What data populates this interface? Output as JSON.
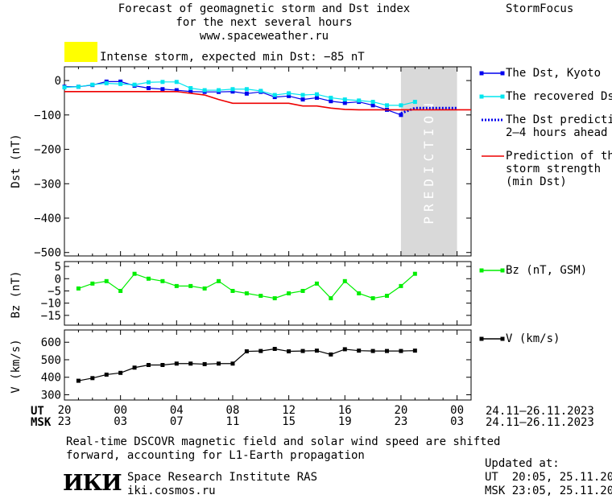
{
  "header": {
    "title_line1": "Forecast of geomagnetic storm and Dst index",
    "title_line2": "for the next several hours",
    "website": "www.spaceweather.ru",
    "brand": "StormFocus",
    "storm_indicator_color": "#ffff00",
    "storm_text": "Intense storm, expected min Dst: −85 nT"
  },
  "legend": {
    "dst_kyoto": "The Dst, Kyoto",
    "recovered_dst": "The recovered Dst",
    "dst_prediction_line1": "The Dst prediction",
    "dst_prediction_line2": "2–4 hours ahead",
    "storm_strength_line1": "Prediction of the",
    "storm_strength_line2": "storm strength",
    "storm_strength_line3": "(min Dst)",
    "bz": "Bz (nT, GSM)",
    "v": "V (km/s)"
  },
  "time_axis": {
    "ut_label": "UT",
    "msk_label": "MSK",
    "ut_ticks": [
      "20",
      "00",
      "04",
      "08",
      "12",
      "16",
      "20",
      "00"
    ],
    "msk_ticks": [
      "23",
      "03",
      "07",
      "11",
      "15",
      "19",
      "23",
      "03"
    ],
    "ut_range": "24.11–26.11.2023",
    "msk_range": "24.11–26.11.2023"
  },
  "footer": {
    "note_line1": "Real-time DSCOVR magnetic field and solar wind speed are shifted",
    "note_line2": "forward, accounting for L1-Earth propagation",
    "logo_text": "ИКИ",
    "institute": "Space Research Institute RAS",
    "institute_site": "iki.cosmos.ru",
    "updated_label": "Updated at:",
    "updated_ut": "UT  20:05, 25.11.2023",
    "updated_msk": "MSK 23:05, 25.11.2023"
  },
  "chart_data": [
    {
      "type": "line",
      "ylabel": "Dst (nT)",
      "ylim": [
        -510,
        40
      ],
      "yticks": [
        0,
        -100,
        -200,
        -300,
        -400,
        -500
      ],
      "ytick_labels": [
        "0",
        "−100",
        "−200",
        "−300",
        "−400",
        "−500"
      ],
      "xlim_hours_from_start": [
        0,
        29
      ],
      "prediction_region": {
        "start_hour": 24,
        "end_hour": 28,
        "label": "PREDICTION",
        "color": "#d9d9d9"
      },
      "series": [
        {
          "name": "The Dst, Kyoto",
          "color": "#0000ee",
          "x": [
            0,
            1,
            2,
            3,
            4,
            5,
            6,
            7,
            8,
            9,
            10,
            11,
            12,
            13,
            14,
            15,
            16,
            17,
            18,
            19,
            20,
            21,
            22,
            23,
            24
          ],
          "y": [
            -18,
            -18,
            -13,
            -3,
            -3,
            -15,
            -22,
            -25,
            -28,
            -32,
            -33,
            -33,
            -32,
            -38,
            -33,
            -48,
            -45,
            -55,
            -50,
            -60,
            -65,
            -62,
            -72,
            -85,
            -100
          ]
        },
        {
          "name": "The recovered Dst",
          "color": "#00e5ee",
          "x": [
            0,
            1,
            2,
            3,
            4,
            5,
            6,
            7,
            8,
            9,
            10,
            11,
            12,
            13,
            14,
            15,
            16,
            17,
            18,
            19,
            20,
            21,
            22,
            23,
            24,
            25
          ],
          "y": [
            -20,
            -18,
            -12,
            -8,
            -10,
            -12,
            -5,
            -4,
            -4,
            -22,
            -28,
            -28,
            -25,
            -25,
            -30,
            -42,
            -37,
            -42,
            -40,
            -50,
            -55,
            -58,
            -62,
            -72,
            -72,
            -62
          ]
        },
        {
          "name": "The Dst prediction 2–4 hours ahead",
          "color": "#0000ee",
          "style": "dotted",
          "x": [
            24,
            25,
            26,
            27,
            28
          ],
          "y": [
            -95,
            -80,
            -80,
            -80,
            -80
          ]
        },
        {
          "name": "Prediction of the storm strength (min Dst)",
          "color": "#ee0000",
          "x": [
            0,
            8,
            10,
            11,
            12,
            13,
            16,
            17,
            18,
            19,
            20,
            21,
            22,
            25,
            29
          ],
          "y": [
            -32,
            -32,
            -42,
            -55,
            -66,
            -66,
            -66,
            -74,
            -74,
            -80,
            -84,
            -85,
            -85,
            -85,
            -85
          ]
        }
      ]
    },
    {
      "type": "line",
      "ylabel": "Bz (nT)",
      "ylim": [
        -19,
        7
      ],
      "yticks": [
        5,
        0,
        -5,
        -10,
        -15
      ],
      "ytick_labels": [
        "5",
        "0",
        "−5",
        "−10",
        "−15"
      ],
      "xlim_hours_from_start": [
        0,
        29
      ],
      "series": [
        {
          "name": "Bz (nT, GSM)",
          "color": "#00ee00",
          "x": [
            1,
            2,
            3,
            4,
            5,
            6,
            7,
            8,
            9,
            10,
            11,
            12,
            13,
            14,
            15,
            16,
            17,
            18,
            19,
            20,
            21,
            22,
            23,
            24,
            25
          ],
          "y": [
            -4,
            -2,
            -1,
            -5,
            2,
            0,
            -1,
            -3,
            -3,
            -4,
            -1,
            -5,
            -6,
            -7,
            -8,
            -6,
            -5,
            -2,
            -8,
            -1,
            -6,
            -8,
            -7,
            -3,
            2
          ]
        }
      ]
    },
    {
      "type": "line",
      "ylabel": "V (km/s)",
      "ylim": [
        270,
        670
      ],
      "yticks": [
        300,
        400,
        500,
        600
      ],
      "ytick_labels": [
        "300",
        "400",
        "500",
        "600"
      ],
      "xlim_hours_from_start": [
        0,
        29
      ],
      "series": [
        {
          "name": "V (km/s)",
          "color": "#000000",
          "x": [
            1,
            2,
            3,
            4,
            5,
            6,
            7,
            8,
            9,
            10,
            11,
            12,
            13,
            14,
            15,
            16,
            17,
            18,
            19,
            20,
            21,
            22,
            23,
            24,
            25
          ],
          "y": [
            380,
            395,
            415,
            425,
            455,
            470,
            470,
            478,
            478,
            475,
            478,
            478,
            548,
            550,
            562,
            548,
            550,
            552,
            530,
            560,
            552,
            550,
            550,
            550,
            552
          ]
        }
      ]
    }
  ]
}
